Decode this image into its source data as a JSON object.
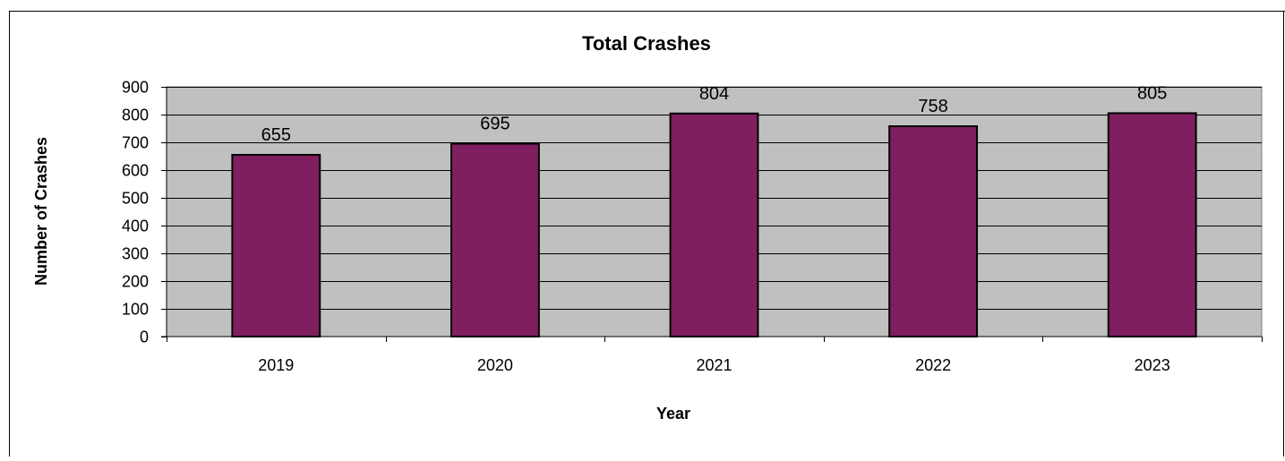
{
  "chart_data": {
    "type": "bar",
    "title": "Total Crashes",
    "xlabel": "Year",
    "ylabel": "Number of Crashes",
    "categories": [
      "2019",
      "2020",
      "2021",
      "2022",
      "2023"
    ],
    "values": [
      655,
      695,
      804,
      758,
      805
    ],
    "ylim": [
      0,
      900
    ],
    "yticks": [
      0,
      100,
      200,
      300,
      400,
      500,
      600,
      700,
      800,
      900
    ],
    "grid": true,
    "legend": "none",
    "data_labels": true,
    "colors": {
      "bar": "#7f1f5f",
      "plot_background": "#c0c0c0",
      "gridline": "#000000"
    }
  }
}
